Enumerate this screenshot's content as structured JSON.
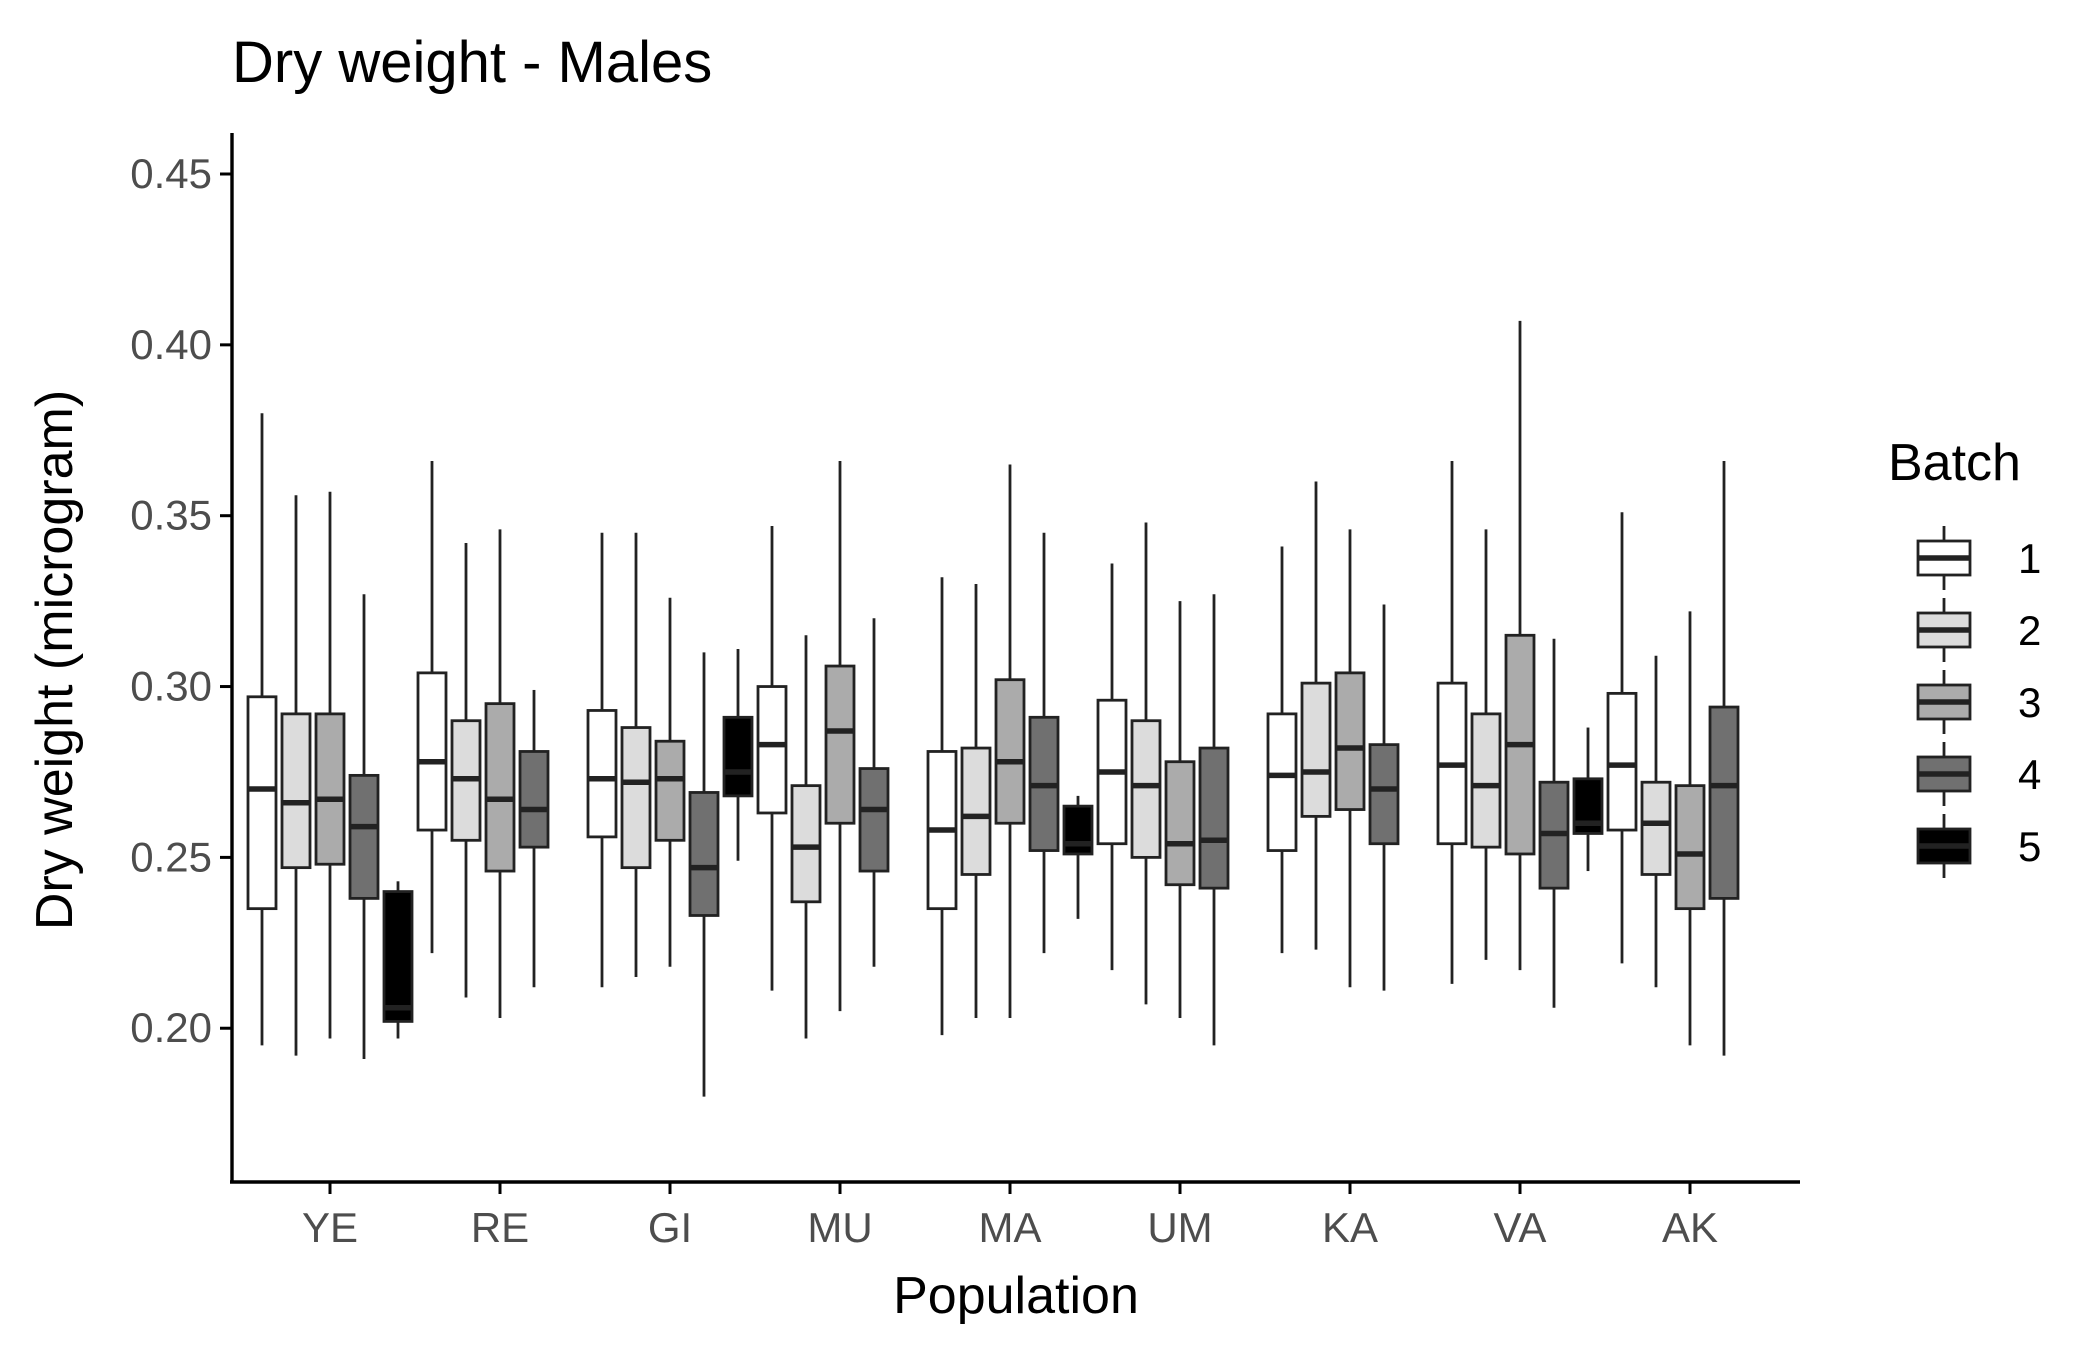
{
  "chart_data": {
    "type": "boxplot",
    "title": "Dry weight - Males",
    "xlabel": "Population",
    "ylabel": "Dry weight (microgram)",
    "ylim": [
      0.155,
      0.462
    ],
    "yticks": [
      0.2,
      0.25,
      0.3,
      0.35,
      0.4,
      0.45
    ],
    "ytick_labels": [
      "0.20",
      "0.25",
      "0.30",
      "0.35",
      "0.40",
      "0.45"
    ],
    "categories": [
      "YE",
      "RE",
      "GI",
      "MU",
      "MA",
      "UM",
      "KA",
      "VA",
      "AK"
    ],
    "legend": {
      "title": "Batch",
      "placement": "right",
      "entries": [
        {
          "label": "1",
          "color": "#ffffff"
        },
        {
          "label": "2",
          "color": "#dcdcdc"
        },
        {
          "label": "3",
          "color": "#ababab"
        },
        {
          "label": "4",
          "color": "#707070"
        },
        {
          "label": "5",
          "color": "#000000"
        }
      ]
    },
    "batch_slots": 5,
    "boxes": [
      {
        "category": "YE",
        "batch": "1",
        "min": 0.195,
        "q1": 0.235,
        "median": 0.27,
        "q3": 0.297,
        "max": 0.38
      },
      {
        "category": "YE",
        "batch": "2",
        "min": 0.192,
        "q1": 0.247,
        "median": 0.266,
        "q3": 0.292,
        "max": 0.356
      },
      {
        "category": "YE",
        "batch": "3",
        "min": 0.197,
        "q1": 0.248,
        "median": 0.267,
        "q3": 0.292,
        "max": 0.357
      },
      {
        "category": "YE",
        "batch": "4",
        "min": 0.191,
        "q1": 0.238,
        "median": 0.259,
        "q3": 0.274,
        "max": 0.327
      },
      {
        "category": "YE",
        "batch": "5",
        "min": 0.197,
        "q1": 0.202,
        "median": 0.206,
        "q3": 0.24,
        "max": 0.243
      },
      {
        "category": "RE",
        "batch": "1",
        "min": 0.222,
        "q1": 0.258,
        "median": 0.278,
        "q3": 0.304,
        "max": 0.366
      },
      {
        "category": "RE",
        "batch": "2",
        "min": 0.209,
        "q1": 0.255,
        "median": 0.273,
        "q3": 0.29,
        "max": 0.342
      },
      {
        "category": "RE",
        "batch": "3",
        "min": 0.203,
        "q1": 0.246,
        "median": 0.267,
        "q3": 0.295,
        "max": 0.346
      },
      {
        "category": "RE",
        "batch": "4",
        "min": 0.212,
        "q1": 0.253,
        "median": 0.264,
        "q3": 0.281,
        "max": 0.299
      },
      {
        "category": "GI",
        "batch": "1",
        "min": 0.212,
        "q1": 0.256,
        "median": 0.273,
        "q3": 0.293,
        "max": 0.345
      },
      {
        "category": "GI",
        "batch": "2",
        "min": 0.215,
        "q1": 0.247,
        "median": 0.272,
        "q3": 0.288,
        "max": 0.345
      },
      {
        "category": "GI",
        "batch": "3",
        "min": 0.218,
        "q1": 0.255,
        "median": 0.273,
        "q3": 0.284,
        "max": 0.326
      },
      {
        "category": "GI",
        "batch": "4",
        "min": 0.18,
        "q1": 0.233,
        "median": 0.247,
        "q3": 0.269,
        "max": 0.31
      },
      {
        "category": "GI",
        "batch": "5",
        "min": 0.249,
        "q1": 0.268,
        "median": 0.275,
        "q3": 0.291,
        "max": 0.311
      },
      {
        "category": "MU",
        "batch": "1",
        "min": 0.211,
        "q1": 0.263,
        "median": 0.283,
        "q3": 0.3,
        "max": 0.347
      },
      {
        "category": "MU",
        "batch": "2",
        "min": 0.197,
        "q1": 0.237,
        "median": 0.253,
        "q3": 0.271,
        "max": 0.315
      },
      {
        "category": "MU",
        "batch": "3",
        "min": 0.205,
        "q1": 0.26,
        "median": 0.287,
        "q3": 0.306,
        "max": 0.366
      },
      {
        "category": "MU",
        "batch": "4",
        "min": 0.218,
        "q1": 0.246,
        "median": 0.264,
        "q3": 0.276,
        "max": 0.32
      },
      {
        "category": "MA",
        "batch": "1",
        "min": 0.198,
        "q1": 0.235,
        "median": 0.258,
        "q3": 0.281,
        "max": 0.332
      },
      {
        "category": "MA",
        "batch": "2",
        "min": 0.203,
        "q1": 0.245,
        "median": 0.262,
        "q3": 0.282,
        "max": 0.33
      },
      {
        "category": "MA",
        "batch": "3",
        "min": 0.203,
        "q1": 0.26,
        "median": 0.278,
        "q3": 0.302,
        "max": 0.365
      },
      {
        "category": "MA",
        "batch": "4",
        "min": 0.222,
        "q1": 0.252,
        "median": 0.271,
        "q3": 0.291,
        "max": 0.345
      },
      {
        "category": "MA",
        "batch": "5",
        "min": 0.232,
        "q1": 0.251,
        "median": 0.254,
        "q3": 0.265,
        "max": 0.268
      },
      {
        "category": "UM",
        "batch": "1",
        "min": 0.217,
        "q1": 0.254,
        "median": 0.275,
        "q3": 0.296,
        "max": 0.336
      },
      {
        "category": "UM",
        "batch": "2",
        "min": 0.207,
        "q1": 0.25,
        "median": 0.271,
        "q3": 0.29,
        "max": 0.348
      },
      {
        "category": "UM",
        "batch": "3",
        "min": 0.203,
        "q1": 0.242,
        "median": 0.254,
        "q3": 0.278,
        "max": 0.325
      },
      {
        "category": "UM",
        "batch": "4",
        "min": 0.195,
        "q1": 0.241,
        "median": 0.255,
        "q3": 0.282,
        "max": 0.327
      },
      {
        "category": "KA",
        "batch": "1",
        "min": 0.222,
        "q1": 0.252,
        "median": 0.274,
        "q3": 0.292,
        "max": 0.341
      },
      {
        "category": "KA",
        "batch": "2",
        "min": 0.223,
        "q1": 0.262,
        "median": 0.275,
        "q3": 0.301,
        "max": 0.36
      },
      {
        "category": "KA",
        "batch": "3",
        "min": 0.212,
        "q1": 0.264,
        "median": 0.282,
        "q3": 0.304,
        "max": 0.346
      },
      {
        "category": "KA",
        "batch": "4",
        "min": 0.211,
        "q1": 0.254,
        "median": 0.27,
        "q3": 0.283,
        "max": 0.324
      },
      {
        "category": "VA",
        "batch": "1",
        "min": 0.213,
        "q1": 0.254,
        "median": 0.277,
        "q3": 0.301,
        "max": 0.366
      },
      {
        "category": "VA",
        "batch": "2",
        "min": 0.22,
        "q1": 0.253,
        "median": 0.271,
        "q3": 0.292,
        "max": 0.346
      },
      {
        "category": "VA",
        "batch": "3",
        "min": 0.217,
        "q1": 0.251,
        "median": 0.283,
        "q3": 0.315,
        "max": 0.407
      },
      {
        "category": "VA",
        "batch": "4",
        "min": 0.206,
        "q1": 0.241,
        "median": 0.257,
        "q3": 0.272,
        "max": 0.314
      },
      {
        "category": "VA",
        "batch": "5",
        "min": 0.246,
        "q1": 0.257,
        "median": 0.26,
        "q3": 0.273,
        "max": 0.288
      },
      {
        "category": "AK",
        "batch": "1",
        "min": 0.219,
        "q1": 0.258,
        "median": 0.277,
        "q3": 0.298,
        "max": 0.351
      },
      {
        "category": "AK",
        "batch": "2",
        "min": 0.212,
        "q1": 0.245,
        "median": 0.26,
        "q3": 0.272,
        "max": 0.309
      },
      {
        "category": "AK",
        "batch": "3",
        "min": 0.195,
        "q1": 0.235,
        "median": 0.251,
        "q3": 0.271,
        "max": 0.322
      },
      {
        "category": "AK",
        "batch": "4",
        "min": 0.192,
        "q1": 0.238,
        "median": 0.271,
        "q3": 0.294,
        "max": 0.366
      }
    ],
    "grid": false
  }
}
